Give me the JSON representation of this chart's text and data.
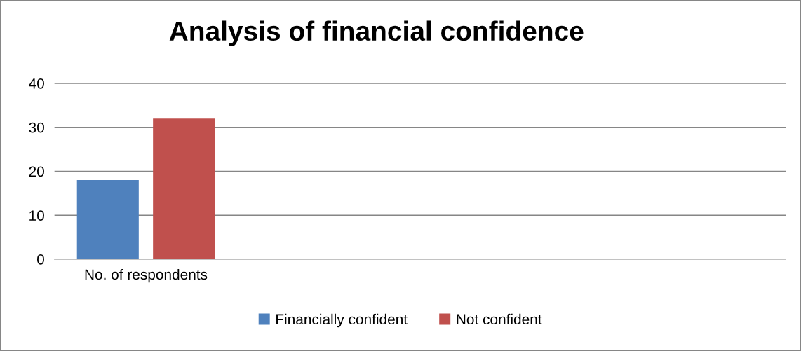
{
  "chart_data": {
    "type": "bar",
    "title": "Analysis of financial confidence",
    "categories": [
      "No. of respondents",
      null,
      null,
      null
    ],
    "series": [
      {
        "name": "Financially confident",
        "color": "#4f81bd",
        "values": [
          18,
          null,
          null,
          null
        ]
      },
      {
        "name": "Not confident",
        "color": "#c0504d",
        "values": [
          32,
          null,
          null,
          null
        ]
      }
    ],
    "ylim": [
      0,
      40
    ],
    "yticks": [
      0,
      10,
      20,
      30,
      40
    ],
    "grid": "y",
    "legend": "bottom"
  }
}
